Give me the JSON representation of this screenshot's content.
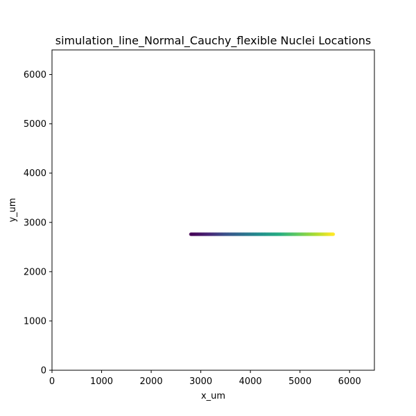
{
  "chart_data": {
    "type": "scatter",
    "title": "simulation_line_Normal_Cauchy_flexible Nuclei Locations",
    "xlabel": "x_um",
    "ylabel": "y_um",
    "xlim": [
      0,
      6500
    ],
    "ylim": [
      0,
      6500
    ],
    "x_ticks": [
      0,
      1000,
      2000,
      3000,
      4000,
      5000,
      6000
    ],
    "y_ticks": [
      0,
      1000,
      2000,
      3000,
      4000,
      5000,
      6000
    ],
    "x_tick_labels": [
      "0",
      "1000",
      "2000",
      "3000",
      "4000",
      "5000",
      "6000"
    ],
    "y_tick_labels": [
      "0",
      "1000",
      "2000",
      "3000",
      "4000",
      "5000",
      "6000"
    ],
    "grid": false,
    "legend": "none",
    "colormap": "viridis",
    "point_color": "mapped from x_um",
    "series": [
      {
        "x_range": [
          2800,
          5670
        ],
        "y_value": 2760,
        "color_start": "#440154",
        "color_end": "#fde725"
      }
    ]
  }
}
